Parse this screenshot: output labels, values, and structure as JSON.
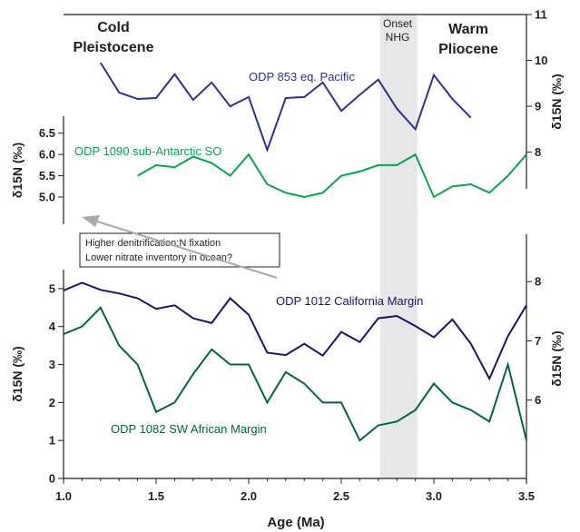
{
  "chart_data": {
    "type": "line",
    "x_axis": {
      "label": "Age (Ma)",
      "lim": [
        1.0,
        3.5
      ],
      "ticks": [
        1.0,
        1.5,
        2.0,
        2.5,
        3.0,
        3.5
      ],
      "tick_labels": [
        "1.0",
        "1.5",
        "2.0",
        "2.5",
        "3.0",
        "3.5"
      ]
    },
    "axes": {
      "left_upper": {
        "label": "δ15N (‰)",
        "lim": [
          4.36,
          6.9
        ],
        "ticks": [
          5.0,
          5.5,
          6.0,
          6.5
        ],
        "tick_labels": [
          "5.0",
          "5.5",
          "6.0",
          "6.5"
        ]
      },
      "left_lower": {
        "label": "δ15N (‰)",
        "lim": [
          0,
          5.5
        ],
        "ticks": [
          0,
          1,
          2,
          3,
          4,
          5
        ],
        "tick_labels": [
          "0",
          "1",
          "2",
          "3",
          "4",
          "5"
        ]
      },
      "right_upper": {
        "label": "δ15N (‰)",
        "lim": [
          7.2,
          11
        ],
        "ticks": [
          8,
          9,
          10,
          11
        ],
        "tick_labels": [
          "8",
          "9",
          "10",
          "11"
        ]
      },
      "right_lower": {
        "label": "δ15N (‰)",
        "lim": [
          4.6,
          8.8
        ],
        "ticks": [
          6,
          7,
          8
        ],
        "tick_labels": [
          "6",
          "7",
          "8"
        ]
      }
    },
    "series": [
      {
        "name": "ODP 853 eq. Pacific",
        "axis": "right_upper",
        "color": "#2e3192",
        "x": [
          1.2,
          1.3,
          1.4,
          1.5,
          1.6,
          1.7,
          1.8,
          1.9,
          2.0,
          2.1,
          2.2,
          2.3,
          2.4,
          2.5,
          2.6,
          2.7,
          2.8,
          2.9,
          3.0,
          3.1,
          3.2
        ],
        "y": [
          9.95,
          9.3,
          9.16,
          9.18,
          9.7,
          9.14,
          9.52,
          9.0,
          9.2,
          8.05,
          9.18,
          9.2,
          9.52,
          8.9,
          9.25,
          9.58,
          8.95,
          8.5,
          9.68,
          9.16,
          8.75
        ]
      },
      {
        "name": "ODP 1090 sub-Antarctic SO",
        "axis": "left_upper",
        "color": "#00a651",
        "x": [
          1.4,
          1.5,
          1.6,
          1.7,
          1.8,
          1.9,
          2.0,
          2.1,
          2.2,
          2.3,
          2.4,
          2.5,
          2.6,
          2.7,
          2.8,
          2.9,
          3.0,
          3.1,
          3.2,
          3.3,
          3.4,
          3.5
        ],
        "y": [
          5.5,
          5.75,
          5.7,
          5.95,
          5.8,
          5.5,
          6.0,
          5.3,
          5.1,
          5.0,
          5.1,
          5.5,
          5.6,
          5.75,
          5.75,
          6.0,
          5.0,
          5.25,
          5.3,
          5.1,
          5.5,
          6.0
        ]
      },
      {
        "name": "ODP 1012 California Margin",
        "axis": "right_lower",
        "color": "#1b1464",
        "x": [
          1.0,
          1.1,
          1.2,
          1.3,
          1.4,
          1.5,
          1.6,
          1.7,
          1.8,
          1.9,
          2.0,
          2.1,
          2.2,
          2.3,
          2.4,
          2.5,
          2.6,
          2.7,
          2.8,
          2.9,
          3.0,
          3.1,
          3.2,
          3.3,
          3.4,
          3.5
        ],
        "y": [
          7.85,
          7.98,
          7.86,
          7.8,
          7.72,
          7.54,
          7.6,
          7.38,
          7.3,
          7.72,
          7.44,
          6.8,
          6.76,
          6.95,
          6.75,
          7.15,
          6.98,
          7.38,
          7.42,
          7.25,
          7.06,
          7.36,
          6.95,
          6.36,
          7.08,
          7.6
        ]
      },
      {
        "name": "ODP 1082 SW African Margin",
        "axis": "left_lower",
        "color": "#006837",
        "x": [
          1.0,
          1.1,
          1.2,
          1.3,
          1.4,
          1.5,
          1.6,
          1.7,
          1.8,
          1.9,
          2.0,
          2.1,
          2.2,
          2.3,
          2.4,
          2.5,
          2.6,
          2.7,
          2.8,
          2.9,
          3.0,
          3.1,
          3.2,
          3.3,
          3.4,
          3.5
        ],
        "y": [
          3.8,
          4.0,
          4.5,
          3.5,
          3.0,
          1.75,
          2.0,
          2.75,
          3.4,
          3.0,
          3.0,
          2.0,
          2.8,
          2.5,
          2.0,
          2.0,
          1.0,
          1.4,
          1.5,
          1.8,
          2.5,
          2.0,
          1.8,
          1.5,
          3.0,
          1.0
        ]
      }
    ],
    "shaded_band": {
      "x_range": [
        2.71,
        2.91
      ],
      "label_line1": "Onset",
      "label_line2": "NHG",
      "color": "#e6e7e8"
    },
    "annotations": {
      "cold_line1": "Cold",
      "cold_line2": "Pleistocene",
      "warm_line1": "Warm",
      "warm_line2": "Pliocene",
      "box_line1": "Higher denitrification:N fixation",
      "box_line2": "Lower nitrate inventory in ocean?"
    },
    "grid": false
  }
}
